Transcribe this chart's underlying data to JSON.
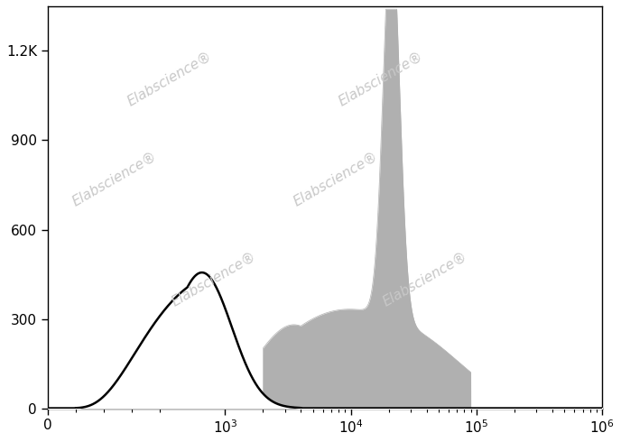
{
  "title": "",
  "xlabel": "",
  "ylabel": "",
  "xlim": [
    0,
    1000000
  ],
  "ylim": [
    0,
    1350
  ],
  "yticks": [
    0,
    300,
    600,
    900,
    1200
  ],
  "ytick_labels": [
    "0",
    "300",
    "600",
    "900",
    "1.2K"
  ],
  "xticks": [
    0,
    1000,
    10000,
    100000,
    1000000
  ],
  "xtick_labels": [
    "0",
    "10$^3$",
    "10$^4$",
    "10$^5$",
    "10$^6$"
  ],
  "linthresh": 500,
  "watermark_text": "Elabscience",
  "watermark_color": "#c8c8c8",
  "black_hist_color": "#000000",
  "gray_fill_color": "#b0b0b0",
  "background_color": "#ffffff"
}
